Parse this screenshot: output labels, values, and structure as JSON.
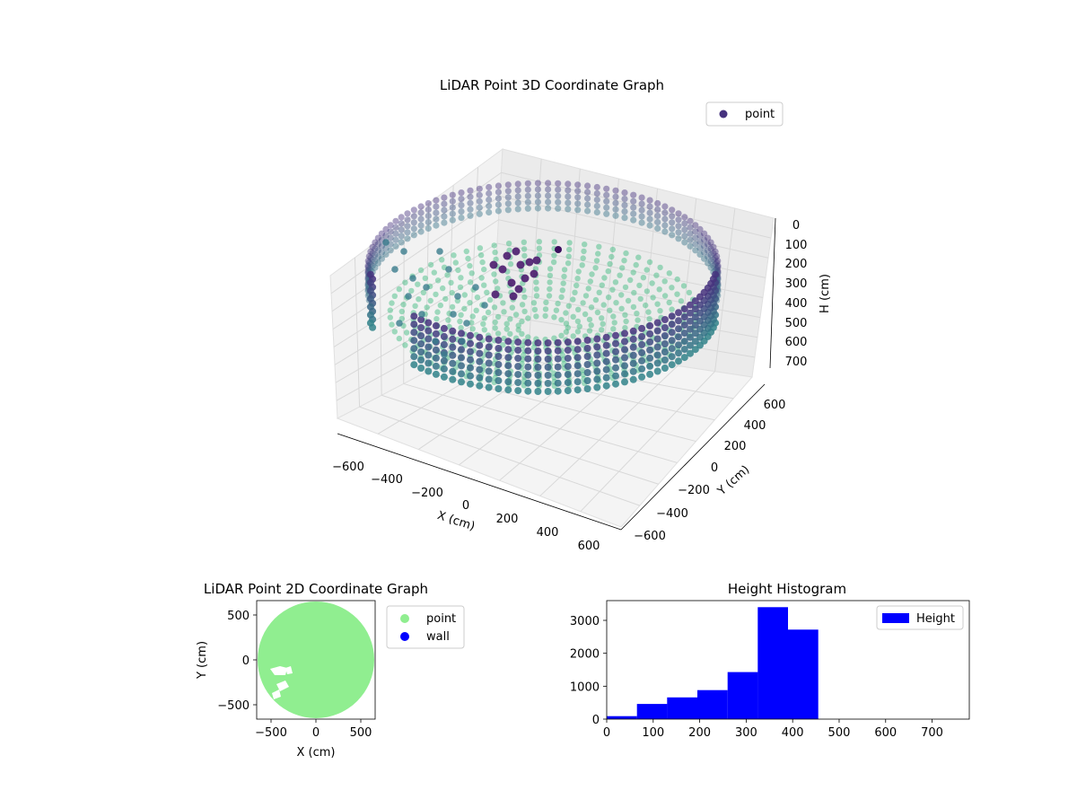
{
  "colors": {
    "viridis_dark": "#46327e",
    "viridis_mid": "#2e8f8b",
    "viridis_light": "#35b779",
    "hist_bar": "#0000ff",
    "point_2d": "#90ee90",
    "wall_2d": "#0000ff"
  },
  "chart_data": [
    {
      "type": "scatter",
      "projection": "3d",
      "title": "LiDAR Point 3D Coordinate Graph",
      "xlabel": "X (cm)",
      "ylabel": "Y (cm)",
      "zlabel": "H (cm)",
      "xticks": [
        "−600",
        "−400",
        "−200",
        "0",
        "200",
        "400",
        "600"
      ],
      "yticks": [
        "−600",
        "−400",
        "−200",
        "0",
        "200",
        "400",
        "600"
      ],
      "zticks": [
        "0",
        "100",
        "200",
        "300",
        "400",
        "500",
        "600",
        "700"
      ],
      "xlim": [
        -650,
        650
      ],
      "ylim": [
        -650,
        650
      ],
      "zlim": [
        760,
        0
      ],
      "zaxis_inverted": true,
      "colormap": "viridis",
      "legend": {
        "placement": "top-right",
        "entries": [
          {
            "label": "point",
            "color": "#46327e"
          }
        ]
      },
      "series": [
        {
          "name": "point",
          "description_of_shape": "dense points on a cylindrical wall of radius ~600 cm from height ~150 to ~450 cm, open funnel floor, cluster near x -100..0",
          "wall_radius": 600,
          "wall_height_range": [
            150,
            450
          ],
          "highlight_point": {
            "x": -50,
            "y": 180,
            "h": 80
          }
        }
      ]
    },
    {
      "type": "scatter",
      "title": "LiDAR Point 2D Coordinate Graph",
      "xlabel": "X (cm)",
      "ylabel": "Y (cm)",
      "xticks": [
        "−500",
        "0",
        "500"
      ],
      "yticks": [
        "500",
        "0",
        "−500"
      ],
      "xlim": [
        -660,
        660
      ],
      "ylim": [
        -660,
        660
      ],
      "legend": {
        "placement": "outside-right",
        "entries": [
          {
            "label": "point",
            "color": "#90ee90"
          },
          {
            "label": "wall",
            "color": "#0000ff"
          }
        ]
      },
      "series": [
        {
          "name": "point",
          "shape": "disk",
          "center": [
            0,
            0
          ],
          "radius": 650
        },
        {
          "name": "wall",
          "values": []
        }
      ]
    },
    {
      "type": "bar",
      "title": "Height Histogram",
      "xlim": [
        0,
        780
      ],
      "ylim": [
        0,
        3600
      ],
      "xticks": [
        "0",
        "100",
        "200",
        "300",
        "400",
        "500",
        "600",
        "700"
      ],
      "yticks": [
        "0",
        "1000",
        "2000",
        "3000"
      ],
      "legend": {
        "placement": "top-right",
        "entries": [
          {
            "label": "Height",
            "color": "#0000ff"
          }
        ]
      },
      "bin_edges": [
        0,
        65,
        130,
        195,
        260,
        325,
        390,
        455,
        520,
        585,
        650,
        715,
        780
      ],
      "series": [
        {
          "name": "Height",
          "values": [
            90,
            460,
            660,
            880,
            1430,
            3400,
            2720,
            0,
            0,
            0,
            0,
            0
          ]
        }
      ]
    }
  ]
}
